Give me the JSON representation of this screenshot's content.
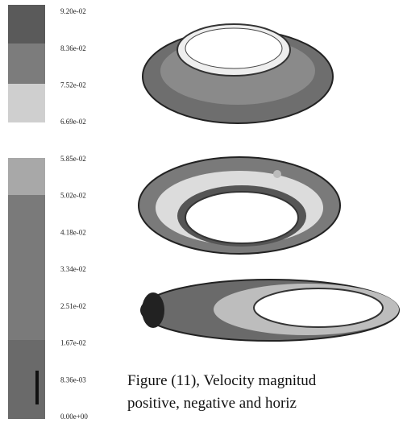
{
  "colorbar": {
    "labels": [
      "9.20e-02",
      "8.36e-02",
      "7.52e-02",
      "6.69e-02",
      "5.85e-02",
      "5.02e-02",
      "4.18e-02",
      "3.34e-02",
      "2.51e-02",
      "1.67e-02",
      "8.36e-03",
      "0.00e+00"
    ]
  },
  "caption": {
    "lines": [
      "Figure (11), Velocity magnitud",
      "positive,  negative  and  horiz"
    ]
  }
}
